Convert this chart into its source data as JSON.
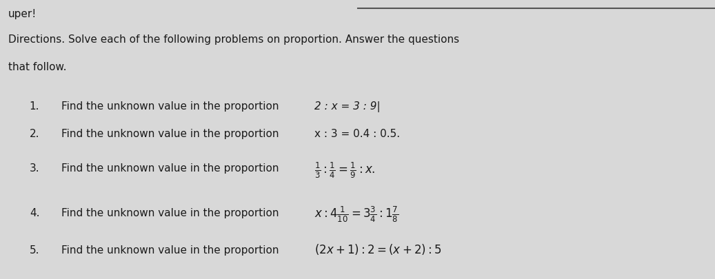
{
  "bg_color": "#d8d8d8",
  "text_color": "#1a1a1a",
  "title_line1": "Directions. Solve each of the following problems on proportion. Answer the questions",
  "title_line2": "that follow.",
  "header_text": "uper!",
  "items": [
    {
      "number": "1.",
      "prefix": "Find the unknown value in the proportion ",
      "math": "2 : x = 3 : 9|",
      "use_mathtex": false
    },
    {
      "number": "2.",
      "prefix": "Find the unknown value in the proportion ",
      "math": "x : 3 = 0.4 : 0.5.",
      "use_mathtex": false
    },
    {
      "number": "3.",
      "prefix": "Find the unknown value in the proportion ",
      "math": "$\\frac{1}{3} : \\frac{1}{4} = \\frac{1}{9} : x.$",
      "use_mathtex": true
    },
    {
      "number": "4.",
      "prefix": "Find the unknown value in the proportion ",
      "math": "$x : 4\\frac{1}{10} = 3\\frac{3}{4} : 1\\frac{7}{8}$",
      "use_mathtex": true
    },
    {
      "number": "5.",
      "prefix": "Find the unknown value in the proportion ",
      "math": "$(2x + 1) : 2 = (x + 2) : 5$",
      "use_mathtex": true
    }
  ],
  "figsize": [
    10.37,
    4.06
  ],
  "dpi": 100
}
